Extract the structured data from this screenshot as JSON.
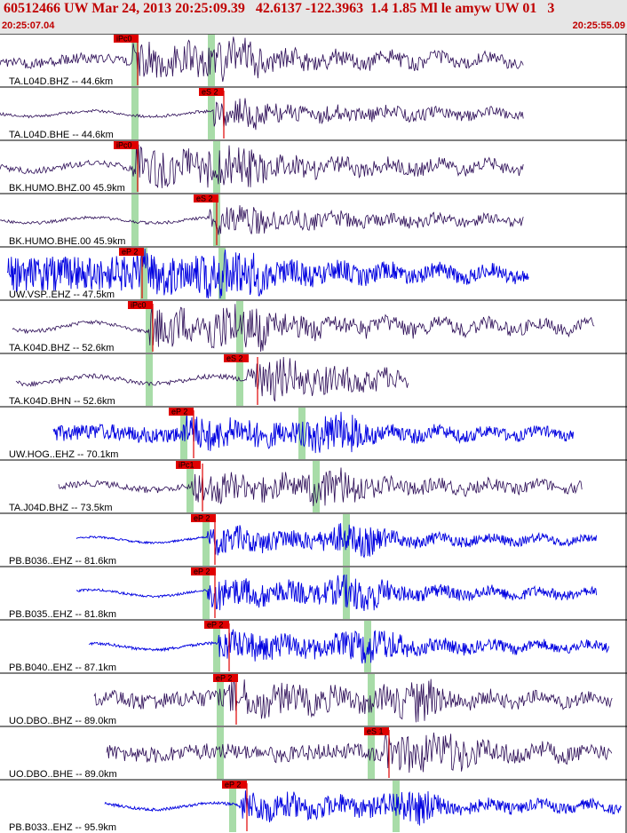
{
  "header": {
    "title": "60512466 UW Mar 24, 2013 20:25:09.39   42.6137 -122.3963  1.4 1.85 Ml le amyw UW 01   3",
    "time_start": "20:25:07.04",
    "time_end": "20:25:55.09"
  },
  "colors": {
    "trace_dark": "#2a0a55",
    "trace_blue": "#0000e0",
    "pick_red": "#e00000",
    "band_green": "#a8dca8",
    "header_bg": "#e6e6e6",
    "title_red": "#c00000"
  },
  "traces": [
    {
      "label": "TA.L04D.BHZ -- 44.6km",
      "pick": "iPc0",
      "color": "dark"
    },
    {
      "label": "TA.L04D.BHE -- 44.6km",
      "pick": "eS 2",
      "color": "dark"
    },
    {
      "label": "BK.HUMO.BHZ.00 45.9km",
      "pick": "iPc0",
      "color": "dark"
    },
    {
      "label": "BK.HUMO.BHE.00 45.9km",
      "pick": "eS 2",
      "color": "dark"
    },
    {
      "label": "UW.VSP..EHZ -- 47.5km",
      "pick": "eP 2",
      "color": "blue"
    },
    {
      "label": "TA.K04D.BHZ -- 52.6km",
      "pick": "iPc0",
      "color": "dark"
    },
    {
      "label": "TA.K04D.BHN -- 52.6km",
      "pick": "eS 2",
      "color": "dark"
    },
    {
      "label": "UW.HOG..EHZ -- 70.1km",
      "pick": "eP 2",
      "color": "blue"
    },
    {
      "label": "TA.J04D.BHZ -- 73.5km",
      "pick": "iPc1",
      "color": "dark"
    },
    {
      "label": "PB.B036..EHZ -- 81.6km",
      "pick": "eP 2",
      "color": "blue"
    },
    {
      "label": "PB.B035..EHZ -- 81.8km",
      "pick": "eP 2",
      "color": "blue"
    },
    {
      "label": "PB.B040..EHZ -- 87.1km",
      "pick": "eP 2",
      "color": "blue"
    },
    {
      "label": "UO.DBO..BHZ -- 89.0km",
      "pick": "eP 2",
      "color": "dark"
    },
    {
      "label": "UO.DBO..BHE -- 89.0km",
      "pick": "eS 1",
      "color": "dark"
    },
    {
      "label": "PB.B033..EHZ -- 95.9km",
      "pick": "eP 2",
      "color": "blue"
    }
  ]
}
